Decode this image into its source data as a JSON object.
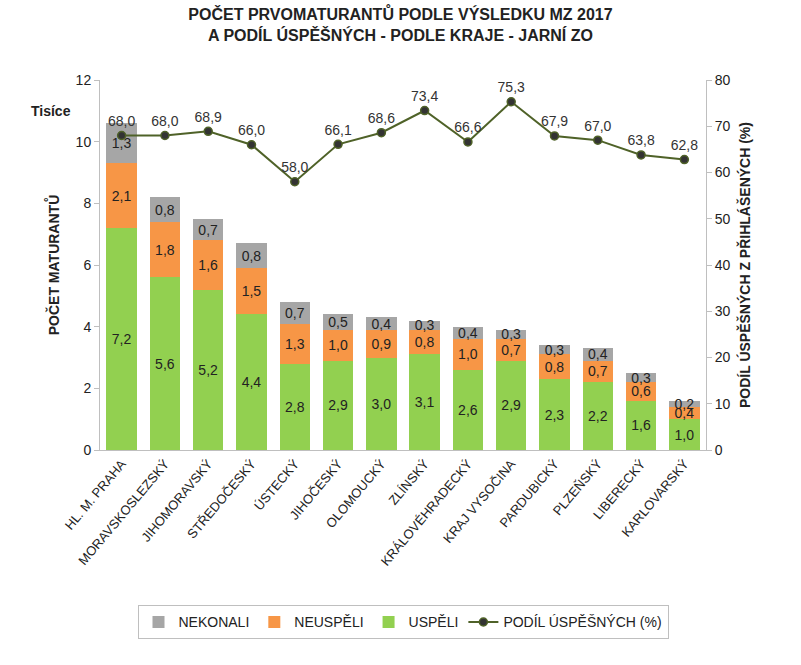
{
  "chart_data": {
    "type": "bar",
    "stacked": true,
    "title": "POČET PRVOMATURANTŮ PODLE VÝSLEDKU MZ 2017 A PODÍL ÚSPĚŠNÝCH - PODLE KRAJE - JARNÍ ZO",
    "y_label": "POČET MATURANTŮ",
    "y2_label": "PODÍL ÚSPĚŠNÝCH Z PŘIHLÁŠENÝCH (%)",
    "annotations": [
      "Tisíce"
    ],
    "categories": [
      "HL. M. PRAHA",
      "MORAVSKOSLEZSKÝ",
      "JIHOMORAVSKÝ",
      "STŘEDOČESKÝ",
      "ÚSTECKÝ",
      "JIHOČESKÝ",
      "OLOMOUCKÝ",
      "ZLÍNSKÝ",
      "KRÁLOVÉHRADECKÝ",
      "KRAJ VYSOČINA",
      "PARDUBICKÝ",
      "PLZEŇSKÝ",
      "LIBERECKÝ",
      "KARLOVARSKÝ"
    ],
    "series": [
      {
        "name": "NEKONALI",
        "type": "bar",
        "color": "#a6a6a6",
        "values": [
          1.3,
          0.8,
          0.7,
          0.8,
          0.7,
          0.5,
          0.4,
          0.3,
          0.4,
          0.3,
          0.3,
          0.4,
          0.3,
          0.2
        ],
        "value_labels": [
          "1,3",
          "0,8",
          "0,7",
          "0,8",
          "0,7",
          "0,5",
          "0,4",
          "0,3",
          "0,4",
          "0,3",
          "0,3",
          "0,4",
          "0,3",
          "0,2"
        ]
      },
      {
        "name": "NEUSPĚLI",
        "type": "bar",
        "color": "#f79646",
        "values": [
          2.1,
          1.8,
          1.6,
          1.5,
          1.3,
          1.0,
          0.9,
          0.8,
          1.0,
          0.7,
          0.8,
          0.7,
          0.6,
          0.4
        ],
        "value_labels": [
          "2,1",
          "1,8",
          "1,6",
          "1,5",
          "1,3",
          "1,0",
          "0,9",
          "0,8",
          "1,0",
          "0,7",
          "0,8",
          "0,7",
          "0,6",
          "0,4"
        ]
      },
      {
        "name": "USPĚLI",
        "type": "bar",
        "color": "#92d050",
        "values": [
          7.2,
          5.6,
          5.2,
          4.4,
          2.8,
          2.9,
          3.0,
          3.1,
          2.6,
          2.9,
          2.3,
          2.2,
          1.6,
          1.0
        ],
        "value_labels": [
          "7,2",
          "5,6",
          "5,2",
          "4,4",
          "2,8",
          "2,9",
          "3,0",
          "3,1",
          "2,6",
          "2,9",
          "2,3",
          "2,2",
          "1,6",
          "1,0"
        ]
      },
      {
        "name": "PODÍL ÚSPĚŠNÝCH (%)",
        "type": "line",
        "axis": "y2",
        "color": "#4f6228",
        "marker": "circle",
        "line_style": "solid",
        "values": [
          68.0,
          68.0,
          68.9,
          66.0,
          58.0,
          66.1,
          68.6,
          73.4,
          66.6,
          75.3,
          67.9,
          67.0,
          63.8,
          62.8
        ],
        "value_labels": [
          "68,0",
          "68,0",
          "68,9",
          "66,0",
          "58,0",
          "66,1",
          "68,6",
          "73,4",
          "66,6",
          "75,3",
          "67,9",
          "67,0",
          "63,8",
          "62,8"
        ]
      }
    ],
    "ylim": [
      0,
      12
    ],
    "yticks": [
      0,
      2,
      4,
      6,
      8,
      10,
      12
    ],
    "y2lim": [
      0,
      80
    ],
    "y2ticks": [
      0,
      10,
      20,
      30,
      40,
      50,
      60,
      70,
      80
    ],
    "data_labels": true,
    "grid": false,
    "legend": "bottom"
  }
}
